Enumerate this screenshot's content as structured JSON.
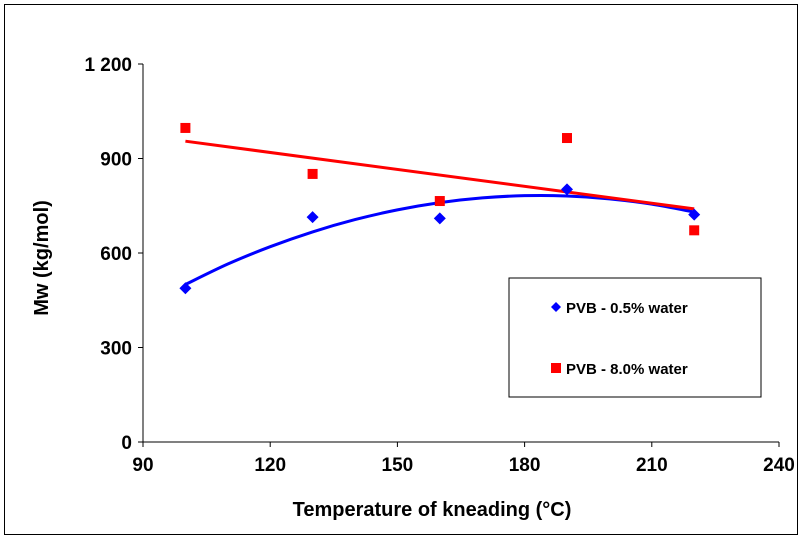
{
  "chart_data": {
    "type": "scatter",
    "title": "",
    "xlabel": "Temperature of kneading  (°C)",
    "ylabel": "Mw (kg/mol)",
    "xlim": [
      90,
      240
    ],
    "ylim": [
      0,
      1200
    ],
    "xticks": [
      90,
      120,
      150,
      180,
      210,
      240
    ],
    "xtick_labels": [
      "90",
      "120",
      "150",
      "180",
      "210",
      "240"
    ],
    "yticks": [
      0,
      300,
      600,
      900,
      1200
    ],
    "ytick_labels": [
      "0",
      "300",
      "600",
      "900",
      "1 200"
    ],
    "grid": false,
    "legend_position": "right",
    "series": [
      {
        "name": "PVB - 0.5% water",
        "marker": "diamond",
        "color": "#0000ff",
        "x": [
          100,
          130,
          160,
          190,
          220
        ],
        "y": [
          488,
          714,
          710,
          802,
          722
        ],
        "trendline": "polynomial",
        "trend_x": [
          100,
          110,
          120,
          130,
          140,
          150,
          160,
          170,
          180,
          190,
          200,
          210,
          220
        ],
        "trend_y": [
          500,
          565,
          620,
          667,
          706,
          737,
          760,
          775,
          782,
          781,
          772,
          755,
          730
        ]
      },
      {
        "name": "PVB - 8.0% water",
        "marker": "square",
        "color": "#ff0000",
        "x": [
          100,
          130,
          160,
          190,
          220
        ],
        "y": [
          997,
          851,
          765,
          965,
          672
        ],
        "trendline": "linear",
        "trend_x": [
          100,
          220
        ],
        "trend_y": [
          955,
          740
        ]
      }
    ]
  }
}
